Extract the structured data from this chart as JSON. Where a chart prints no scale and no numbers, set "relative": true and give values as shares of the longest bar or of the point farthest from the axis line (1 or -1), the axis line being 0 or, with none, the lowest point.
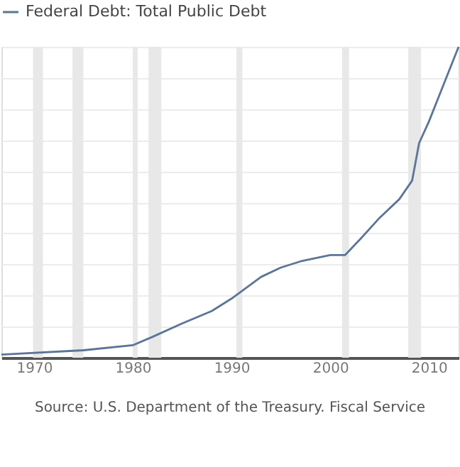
{
  "chart_data": {
    "type": "line",
    "relative": true,
    "x": [
      1966.7,
      1975,
      1980,
      1982,
      1985,
      1988,
      1990,
      1993,
      1995,
      1997,
      2000,
      2001.5,
      2003,
      2005,
      2007,
      2008.3,
      2009,
      2010,
      2011,
      2012,
      2013
    ],
    "series": [
      {
        "name": "Federal Debt: Total Public Debt",
        "color": "#5b7597",
        "values": [
          0.01,
          0.024,
          0.04,
          0.067,
          0.11,
          0.15,
          0.19,
          0.26,
          0.29,
          0.31,
          0.33,
          0.33,
          0.38,
          0.45,
          0.51,
          0.57,
          0.69,
          0.76,
          0.84,
          0.92,
          1
        ]
      }
    ],
    "xlim": [
      1966.7,
      2013
    ],
    "xticks": [
      1970,
      1980,
      1990,
      2000,
      2010
    ],
    "bands": [
      {
        "axis": "x",
        "from": 1969.9,
        "to": 1970.9,
        "color": "#e8e8e8"
      },
      {
        "axis": "x",
        "from": 1973.9,
        "to": 1975,
        "color": "#e8e8e8"
      },
      {
        "axis": "x",
        "from": 1980,
        "to": 1980.5,
        "color": "#e8e8e8"
      },
      {
        "axis": "x",
        "from": 1981.6,
        "to": 1982.9,
        "color": "#e8e8e8"
      },
      {
        "axis": "x",
        "from": 1990.5,
        "to": 1991.1,
        "color": "#e8e8e8"
      },
      {
        "axis": "x",
        "from": 2001.2,
        "to": 2001.9,
        "color": "#e8e8e8"
      },
      {
        "axis": "x",
        "from": 2007.9,
        "to": 2009.2,
        "color": "#e8e8e8"
      }
    ],
    "grid": "y",
    "legend": "top left",
    "line_style": "solid",
    "annotations": [
      "Source: U.S. Department of the Treasury. Fiscal Service"
    ]
  }
}
